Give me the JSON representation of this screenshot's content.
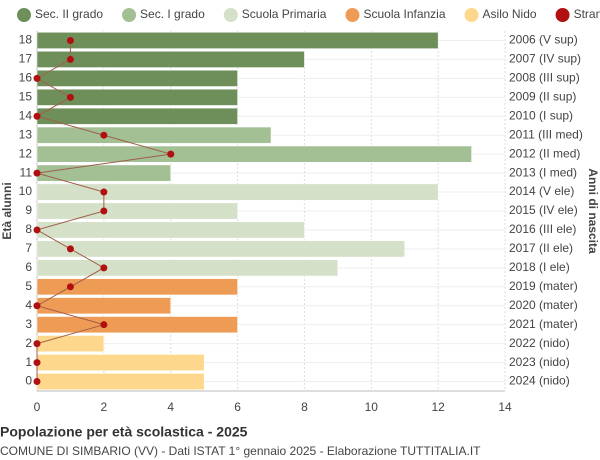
{
  "chart_data": {
    "type": "bar",
    "orientation": "horizontal",
    "title": "Popolazione per età scolastica - 2025",
    "subtitle": "COMUNE DI SIMBARIO (VV) - Dati ISTAT 1° gennaio 2025 - Elaborazione TUTTITALIA.IT",
    "y_label": "Età alunni",
    "y2_label": "Anni di nascita",
    "categories": [
      "18",
      "17",
      "16",
      "15",
      "14",
      "13",
      "12",
      "11",
      "10",
      "9",
      "8",
      "7",
      "6",
      "5",
      "4",
      "3",
      "2",
      "1",
      "0"
    ],
    "categories_right": [
      "2006 (V sup)",
      "2007 (IV sup)",
      "2008 (III sup)",
      "2009 (II sup)",
      "2010 (I sup)",
      "2011 (III med)",
      "2012 (II med)",
      "2013 (I med)",
      "2014 (V ele)",
      "2015 (IV ele)",
      "2016 (III ele)",
      "2017 (II ele)",
      "2018 (I ele)",
      "2019 (mater)",
      "2020 (mater)",
      "2021 (mater)",
      "2022 (nido)",
      "2023 (nido)",
      "2024 (nido)"
    ],
    "series": [
      {
        "name": "Sec. II grado",
        "color": "#6e8f5a",
        "values": [
          12,
          8,
          6,
          6,
          6,
          null,
          null,
          null,
          null,
          null,
          null,
          null,
          null,
          null,
          null,
          null,
          null,
          null,
          null
        ]
      },
      {
        "name": "Sec. I grado",
        "color": "#a3bf94",
        "values": [
          null,
          null,
          null,
          null,
          null,
          7,
          13,
          4,
          null,
          null,
          null,
          null,
          null,
          null,
          null,
          null,
          null,
          null,
          null
        ]
      },
      {
        "name": "Scuola Primaria",
        "color": "#d4e0c8",
        "values": [
          null,
          null,
          null,
          null,
          null,
          null,
          null,
          null,
          12,
          6,
          8,
          11,
          9,
          null,
          null,
          null,
          null,
          null,
          null
        ]
      },
      {
        "name": "Scuola Infanzia",
        "color": "#ee9c55",
        "values": [
          null,
          null,
          null,
          null,
          null,
          null,
          null,
          null,
          null,
          null,
          null,
          null,
          null,
          6,
          4,
          6,
          null,
          null,
          null
        ]
      },
      {
        "name": "Asilo Nido",
        "color": "#fdd88c",
        "values": [
          null,
          null,
          null,
          null,
          null,
          null,
          null,
          null,
          null,
          null,
          null,
          null,
          null,
          null,
          null,
          null,
          2,
          5,
          5
        ]
      },
      {
        "name": "Stranieri",
        "color": "#b01010",
        "type": "line",
        "values": [
          1,
          1,
          0,
          1,
          0,
          2,
          4,
          0,
          2,
          2,
          0,
          1,
          2,
          1,
          0,
          2,
          0,
          0,
          0
        ]
      }
    ],
    "xlim": [
      0,
      14
    ],
    "xticks": [
      0,
      2,
      4,
      6,
      8,
      10,
      12,
      14
    ],
    "grid": true
  }
}
